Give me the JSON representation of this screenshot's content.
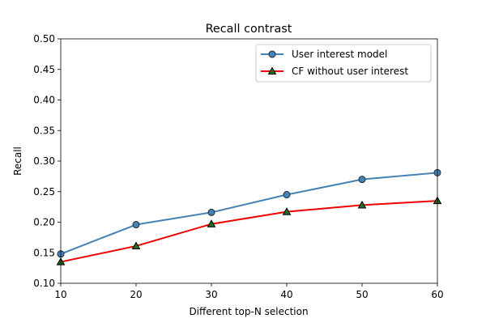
{
  "chart_data": {
    "type": "line",
    "title": "Recall contrast",
    "xlabel": "Different top-N selection",
    "ylabel": "Recall",
    "x": [
      10,
      20,
      30,
      40,
      50,
      60
    ],
    "xlim": [
      10,
      60
    ],
    "ylim": [
      0.1,
      0.5
    ],
    "x_ticks": [
      "10",
      "20",
      "30",
      "40",
      "50",
      "60"
    ],
    "y_ticks": [
      "0.10",
      "0.15",
      "0.20",
      "0.25",
      "0.30",
      "0.35",
      "0.40",
      "0.45",
      "0.50"
    ],
    "grid": false,
    "legend_position": "top-right",
    "series": [
      {
        "name": "User interest model",
        "values": [
          0.148,
          0.196,
          0.216,
          0.245,
          0.27,
          0.281
        ],
        "color": "#4682b4",
        "marker": "circle",
        "marker_fill": "#4682b4",
        "marker_edge": "#1a2a3a"
      },
      {
        "name": "CF without user interest",
        "values": [
          0.135,
          0.161,
          0.197,
          0.217,
          0.228,
          0.235
        ],
        "color": "#ee0000",
        "marker": "triangle",
        "marker_fill": "#1f6f1f",
        "marker_edge": "#000000"
      }
    ]
  }
}
